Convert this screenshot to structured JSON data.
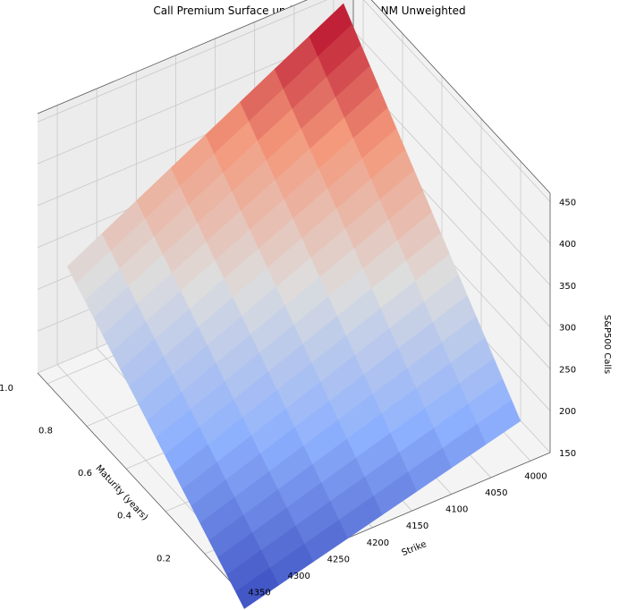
{
  "chart_data": {
    "type": "surface",
    "title": "Call Premium Surface under Heston using NM Unweighted",
    "xlabel": "Strike",
    "ylabel": "Maturity (years)",
    "zlabel": "S&P500 Calls",
    "colormap": "coolwarm",
    "grid": true,
    "xlim": [
      3975,
      4375
    ],
    "ylim": [
      0.05,
      1.05
    ],
    "zlim": [
      150,
      460
    ],
    "x_ticks": [
      "4000",
      "4050",
      "4100",
      "4150",
      "4200",
      "4250",
      "4300",
      "4350"
    ],
    "y_ticks": [
      "0.2",
      "0.4",
      "0.6",
      "0.8",
      "1.0"
    ],
    "z_ticks": [
      "150",
      "200",
      "250",
      "300",
      "350",
      "400",
      "450"
    ],
    "strike_range": [
      4000,
      4350
    ],
    "maturity_range": [
      0.1,
      1.0
    ],
    "corner_values": [
      {
        "strike": 4000,
        "maturity": 0.1,
        "premium": 185
      },
      {
        "strike": 4350,
        "maturity": 0.1,
        "premium": 100
      },
      {
        "strike": 4000,
        "maturity": 1.0,
        "premium": 455
      },
      {
        "strike": 4350,
        "maturity": 1.0,
        "premium": 280
      }
    ]
  }
}
